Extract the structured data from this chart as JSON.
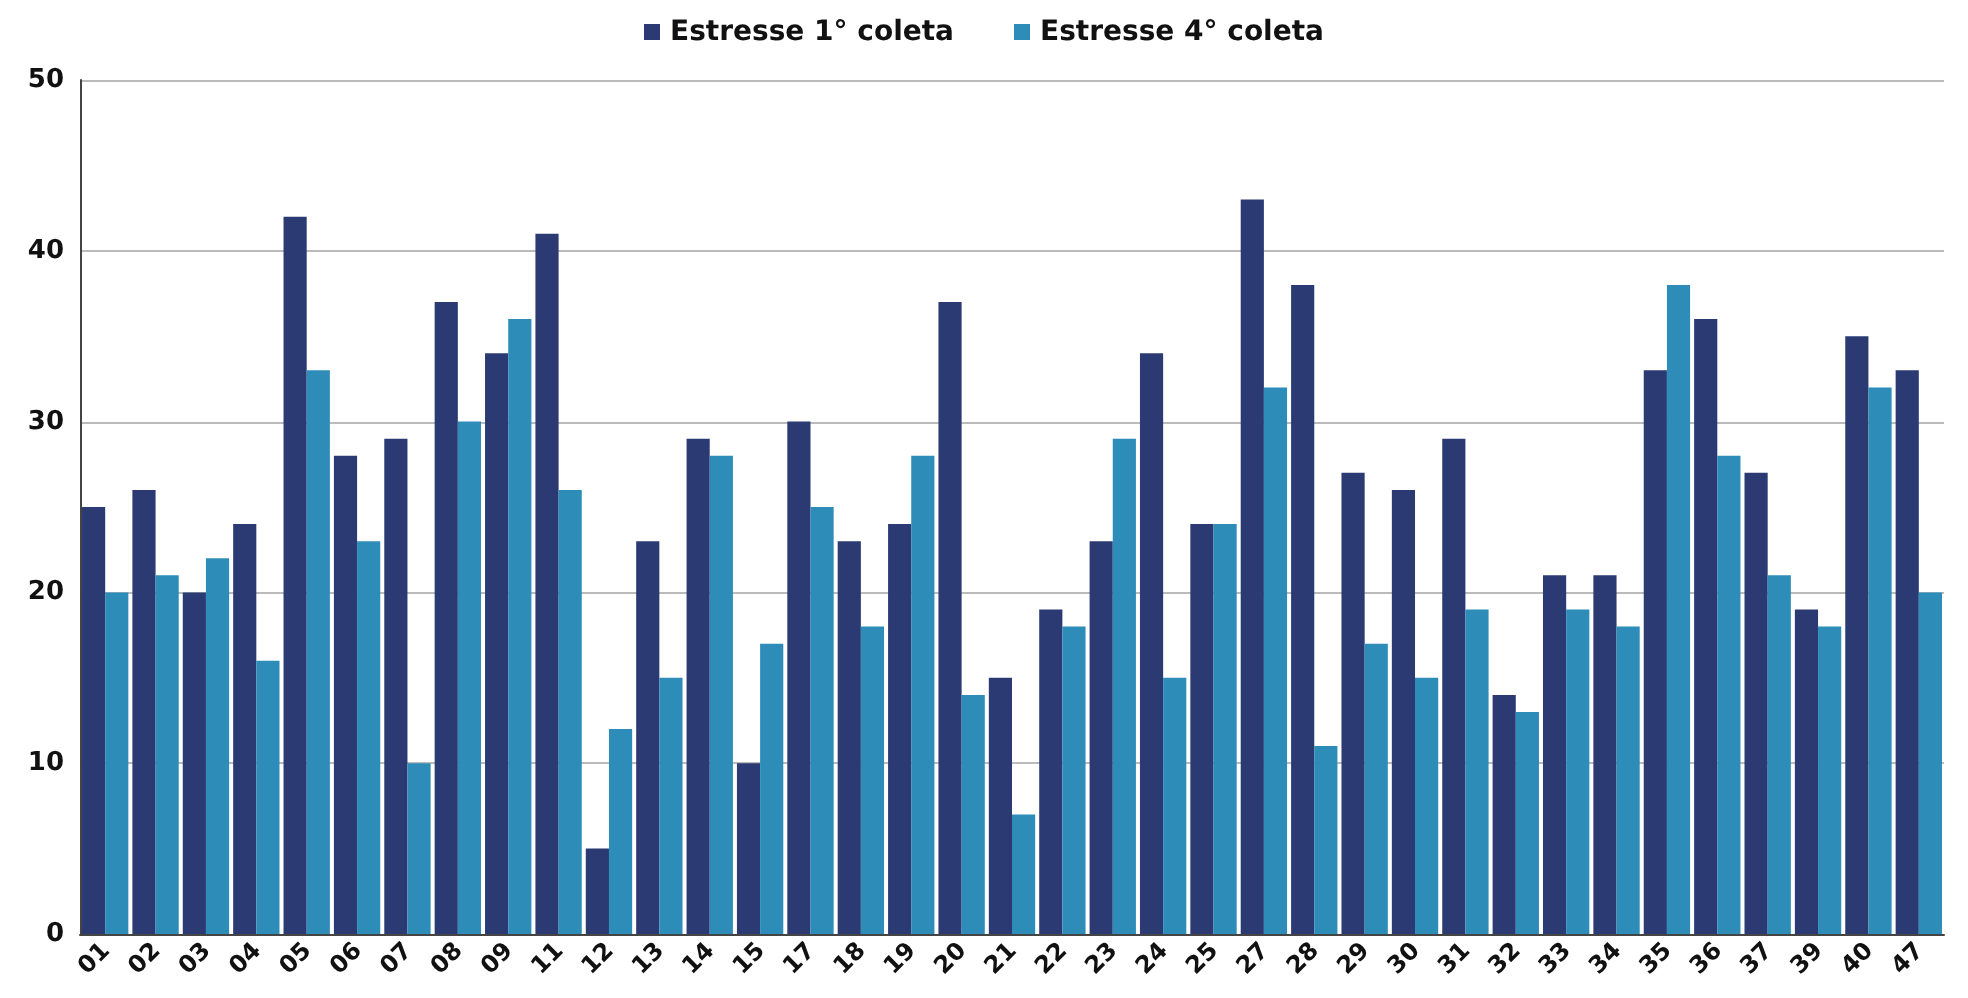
{
  "chart_data": {
    "type": "bar",
    "categories": [
      "01",
      "02",
      "03",
      "04",
      "05",
      "06",
      "07",
      "08",
      "09",
      "11",
      "12",
      "13",
      "14",
      "15",
      "17",
      "18",
      "19",
      "20",
      "21",
      "22",
      "23",
      "24",
      "25",
      "27",
      "28",
      "29",
      "30",
      "31",
      "32",
      "33",
      "34",
      "35",
      "36",
      "37",
      "39",
      "40",
      "47"
    ],
    "series": [
      {
        "name": "Estresse 1° coleta",
        "color": "#2b3a73",
        "values": [
          25,
          26,
          20,
          24,
          42,
          28,
          29,
          37,
          34,
          41,
          5,
          23,
          29,
          10,
          30,
          23,
          24,
          37,
          15,
          19,
          23,
          34,
          24,
          43,
          38,
          27,
          26,
          29,
          14,
          21,
          21,
          33,
          36,
          27,
          19,
          35,
          33
        ]
      },
      {
        "name": "Estresse 4° coleta",
        "color": "#2e8cb8",
        "values": [
          20,
          21,
          22,
          16,
          33,
          23,
          10,
          30,
          36,
          26,
          12,
          15,
          28,
          17,
          25,
          18,
          28,
          14,
          7,
          18,
          29,
          15,
          24,
          32,
          11,
          17,
          15,
          19,
          13,
          19,
          18,
          38,
          28,
          21,
          18,
          32,
          20
        ]
      }
    ],
    "ylim": [
      0,
      50
    ],
    "yticks": [
      0,
      10,
      20,
      30,
      40,
      50
    ],
    "grid": "y",
    "legend": "top"
  }
}
